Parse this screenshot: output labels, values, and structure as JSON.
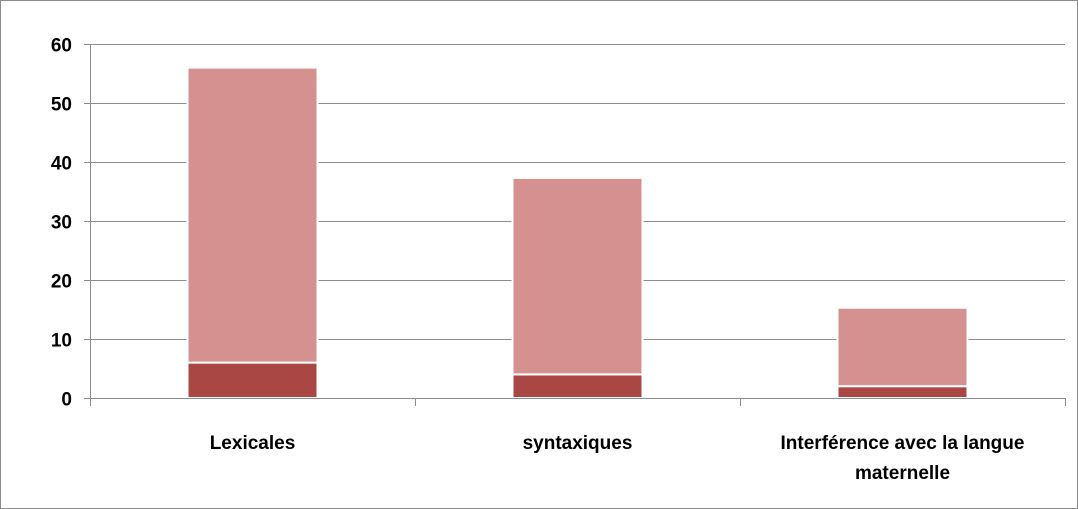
{
  "chart_data": {
    "type": "bar",
    "stacked": true,
    "title": "",
    "xlabel": "",
    "ylabel": "",
    "categories": [
      [
        "Lexicales"
      ],
      [
        "syntaxiques"
      ],
      [
        "Interférence avec la langue",
        "maternelle"
      ]
    ],
    "ylim": [
      0,
      60
    ],
    "yticks": [
      0,
      10,
      20,
      30,
      40,
      50,
      60
    ],
    "grid": true,
    "legend": "none",
    "series": [
      {
        "values": [
          6,
          4,
          2
        ],
        "color": "#a94745"
      },
      {
        "values": [
          50,
          33.3,
          13.3
        ],
        "color": "#d49190"
      }
    ],
    "colors": {
      "border": "#ffffff",
      "gridline": "#8c8c8c",
      "axis": "#8c8c8c",
      "frame": "#8c8c8c"
    }
  }
}
